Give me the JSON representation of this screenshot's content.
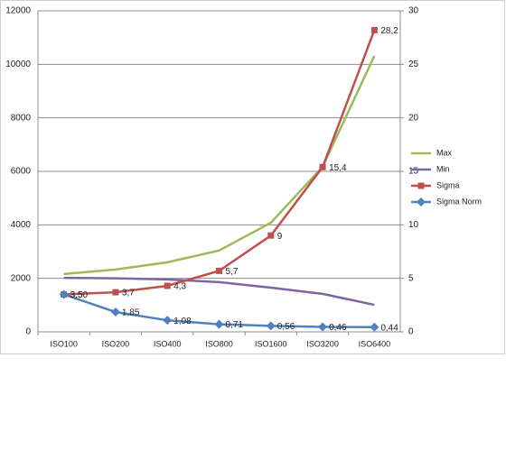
{
  "chart_data": {
    "type": "line",
    "categories": [
      "ISO100",
      "ISO200",
      "ISO400",
      "ISO800",
      "ISO1600",
      "ISO3200",
      "ISO6400"
    ],
    "ylim": [
      0,
      12000
    ],
    "yticks": [
      0,
      2000,
      4000,
      6000,
      8000,
      10000,
      12000
    ],
    "y2lim": [
      0,
      30
    ],
    "y2ticks": [
      0,
      5,
      10,
      15,
      20,
      25,
      30
    ],
    "grid": true,
    "legend": "right",
    "series": [
      {
        "name": "Max",
        "color": "#9bbb59",
        "values": [
          2160,
          2330,
          2600,
          3040,
          4080,
          6170,
          10320
        ]
      },
      {
        "name": "Min",
        "color": "#8064a2",
        "values": [
          2020,
          2000,
          1960,
          1860,
          1650,
          1420,
          1010
        ]
      },
      {
        "name": "Sigma",
        "color": "#c0504d",
        "axis": "y2",
        "marker": "square",
        "values": [
          3.5,
          3.7,
          4.3,
          5.7,
          9,
          15.4,
          28.2
        ],
        "value_labels": [
          "3,5",
          "3,7",
          "4,3",
          "5,7",
          "9",
          "15,4",
          "28,2"
        ]
      },
      {
        "name": "Sigma Norm",
        "color": "#4f81bd",
        "axis": "y2",
        "marker": "diamond",
        "values": [
          3.5,
          1.85,
          1.08,
          0.71,
          0.56,
          0.46,
          0.44
        ],
        "value_labels": [
          "3,50",
          "1,85",
          "1,08",
          "0,71",
          "0,56",
          "0,46",
          "0,44"
        ]
      }
    ]
  }
}
